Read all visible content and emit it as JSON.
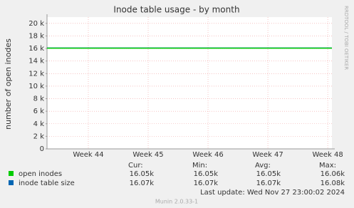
{
  "chart_data": {
    "type": "line",
    "title": "Inode table usage - by month",
    "y_label": "number of open inodes",
    "side_text": "RRDTOOL / TOBI OETIKER",
    "x": [
      43.31,
      48.07
    ],
    "xlim": [
      43.31,
      48.07
    ],
    "xticks": [
      {
        "value": 44,
        "label": "Week 44"
      },
      {
        "value": 45,
        "label": "Week 45"
      },
      {
        "value": 46,
        "label": "Week 46"
      },
      {
        "value": 47,
        "label": "Week 47"
      },
      {
        "value": 48,
        "label": "Week 48"
      }
    ],
    "ylim": [
      0,
      21000
    ],
    "yticks": [
      0,
      {
        "value": 2000,
        "label": "2 k"
      },
      {
        "value": 4000,
        "label": "4 k"
      },
      {
        "value": 6000,
        "label": "6 k"
      },
      {
        "value": 8000,
        "label": "8 k"
      },
      {
        "value": 10000,
        "label": "10 k"
      },
      {
        "value": 12000,
        "label": "12 k"
      },
      {
        "value": 14000,
        "label": "14 k"
      },
      {
        "value": 16000,
        "label": "16 k"
      },
      {
        "value": 18000,
        "label": "18 k"
      },
      {
        "value": 20000,
        "label": "20 k"
      }
    ],
    "grid": true,
    "series": [
      {
        "name": "open inodes",
        "color": "#00cc00",
        "values": [
          16050,
          16050
        ]
      },
      {
        "name": "inode table size",
        "color": "#0066b3",
        "values": [
          16070,
          16070
        ]
      }
    ],
    "stats": {
      "headers": [
        "Cur:",
        "Min:",
        "Avg:",
        "Max:"
      ],
      "rows": [
        [
          "16.05k",
          "16.05k",
          "16.05k",
          "16.06k"
        ],
        [
          "16.07k",
          "16.07k",
          "16.07k",
          "16.08k"
        ]
      ]
    },
    "last_update": "Last update: Wed Nov 27 23:00:02 2024",
    "footer": "Munin 2.0.33-1"
  }
}
